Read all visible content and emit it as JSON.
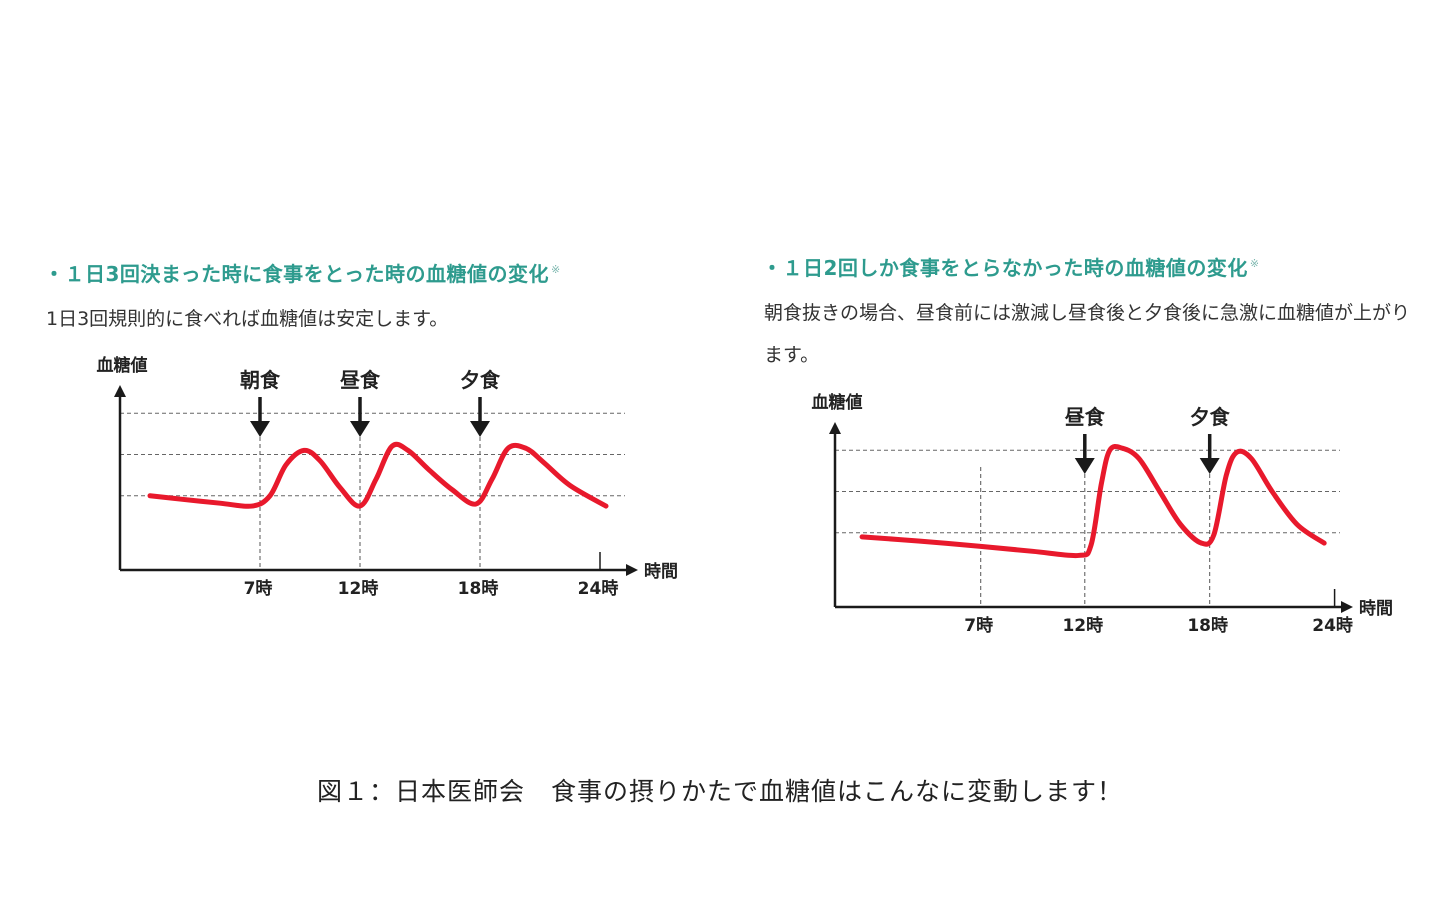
{
  "caption": "図１：日本医師会　食事の摂りかたで血糖値はこんなに変動します！",
  "colors": {
    "heading": "#2e9b8e",
    "curve": "#e8192c",
    "axis": "#1a1a1a"
  },
  "chart_data": [
    {
      "type": "line",
      "title": "・１日3回決まった時に食事をとった時の血糖値の変化",
      "title_mark": "※",
      "subtitle": "1日3回規則的に食べれば血糖値は安定します。",
      "ylabel": "血糖値",
      "xlabel": "時間",
      "x_ticks": [
        {
          "value": 7,
          "label": "7時"
        },
        {
          "value": 12,
          "label": "12時"
        },
        {
          "value": 18,
          "label": "18時"
        },
        {
          "value": 24,
          "label": "24時"
        }
      ],
      "meals": [
        {
          "label": "朝食",
          "hour": 7
        },
        {
          "label": "昼食",
          "hour": 12
        },
        {
          "label": "夕食",
          "hour": 18
        }
      ],
      "xlim": [
        0,
        25.5
      ],
      "ylim": [
        0,
        4
      ],
      "grid_levels": [
        1.8,
        2.8,
        3.8
      ],
      "x": [
        1.5,
        3,
        5,
        6.6,
        7.5,
        8.3,
        9.2,
        10,
        11,
        12,
        12.8,
        13.6,
        14.4,
        15.4,
        16.6,
        17.8,
        18.6,
        19.4,
        20.3,
        21.2,
        22.5,
        24.3
      ],
      "y": [
        1.8,
        1.72,
        1.62,
        1.55,
        1.8,
        2.55,
        2.9,
        2.65,
        2.0,
        1.55,
        2.2,
        3.0,
        2.9,
        2.45,
        1.95,
        1.6,
        2.2,
        2.95,
        2.95,
        2.6,
        2.05,
        1.55
      ]
    },
    {
      "type": "line",
      "title": "・１日2回しか食事をとらなかった時の血糖値の変化",
      "title_mark": "※",
      "subtitle": "朝食抜きの場合、昼食前には激減し昼食後と夕食後に急激に血糖値が上がります。",
      "ylabel": "血糖値",
      "xlabel": "時間",
      "x_ticks": [
        {
          "value": 7,
          "label": "7時"
        },
        {
          "value": 12,
          "label": "12時"
        },
        {
          "value": 18,
          "label": "18時"
        },
        {
          "value": 24,
          "label": "24時"
        }
      ],
      "meals": [
        {
          "label": "昼食",
          "hour": 12
        },
        {
          "label": "夕食",
          "hour": 18
        }
      ],
      "xlim": [
        0,
        24.5
      ],
      "ylim": [
        0,
        4
      ],
      "grid_levels": [
        1.8,
        2.8,
        3.8
      ],
      "x": [
        1.3,
        4,
        7,
        9.5,
        11.7,
        12.3,
        12.8,
        13.2,
        13.8,
        14.6,
        15.6,
        16.6,
        17.6,
        18.2,
        18.8,
        19.3,
        20,
        21,
        22.2,
        23.5
      ],
      "y": [
        1.7,
        1.6,
        1.47,
        1.35,
        1.25,
        1.5,
        3.0,
        3.8,
        3.85,
        3.6,
        2.8,
        2.0,
        1.55,
        1.75,
        3.2,
        3.75,
        3.6,
        2.8,
        2.0,
        1.55
      ]
    }
  ]
}
